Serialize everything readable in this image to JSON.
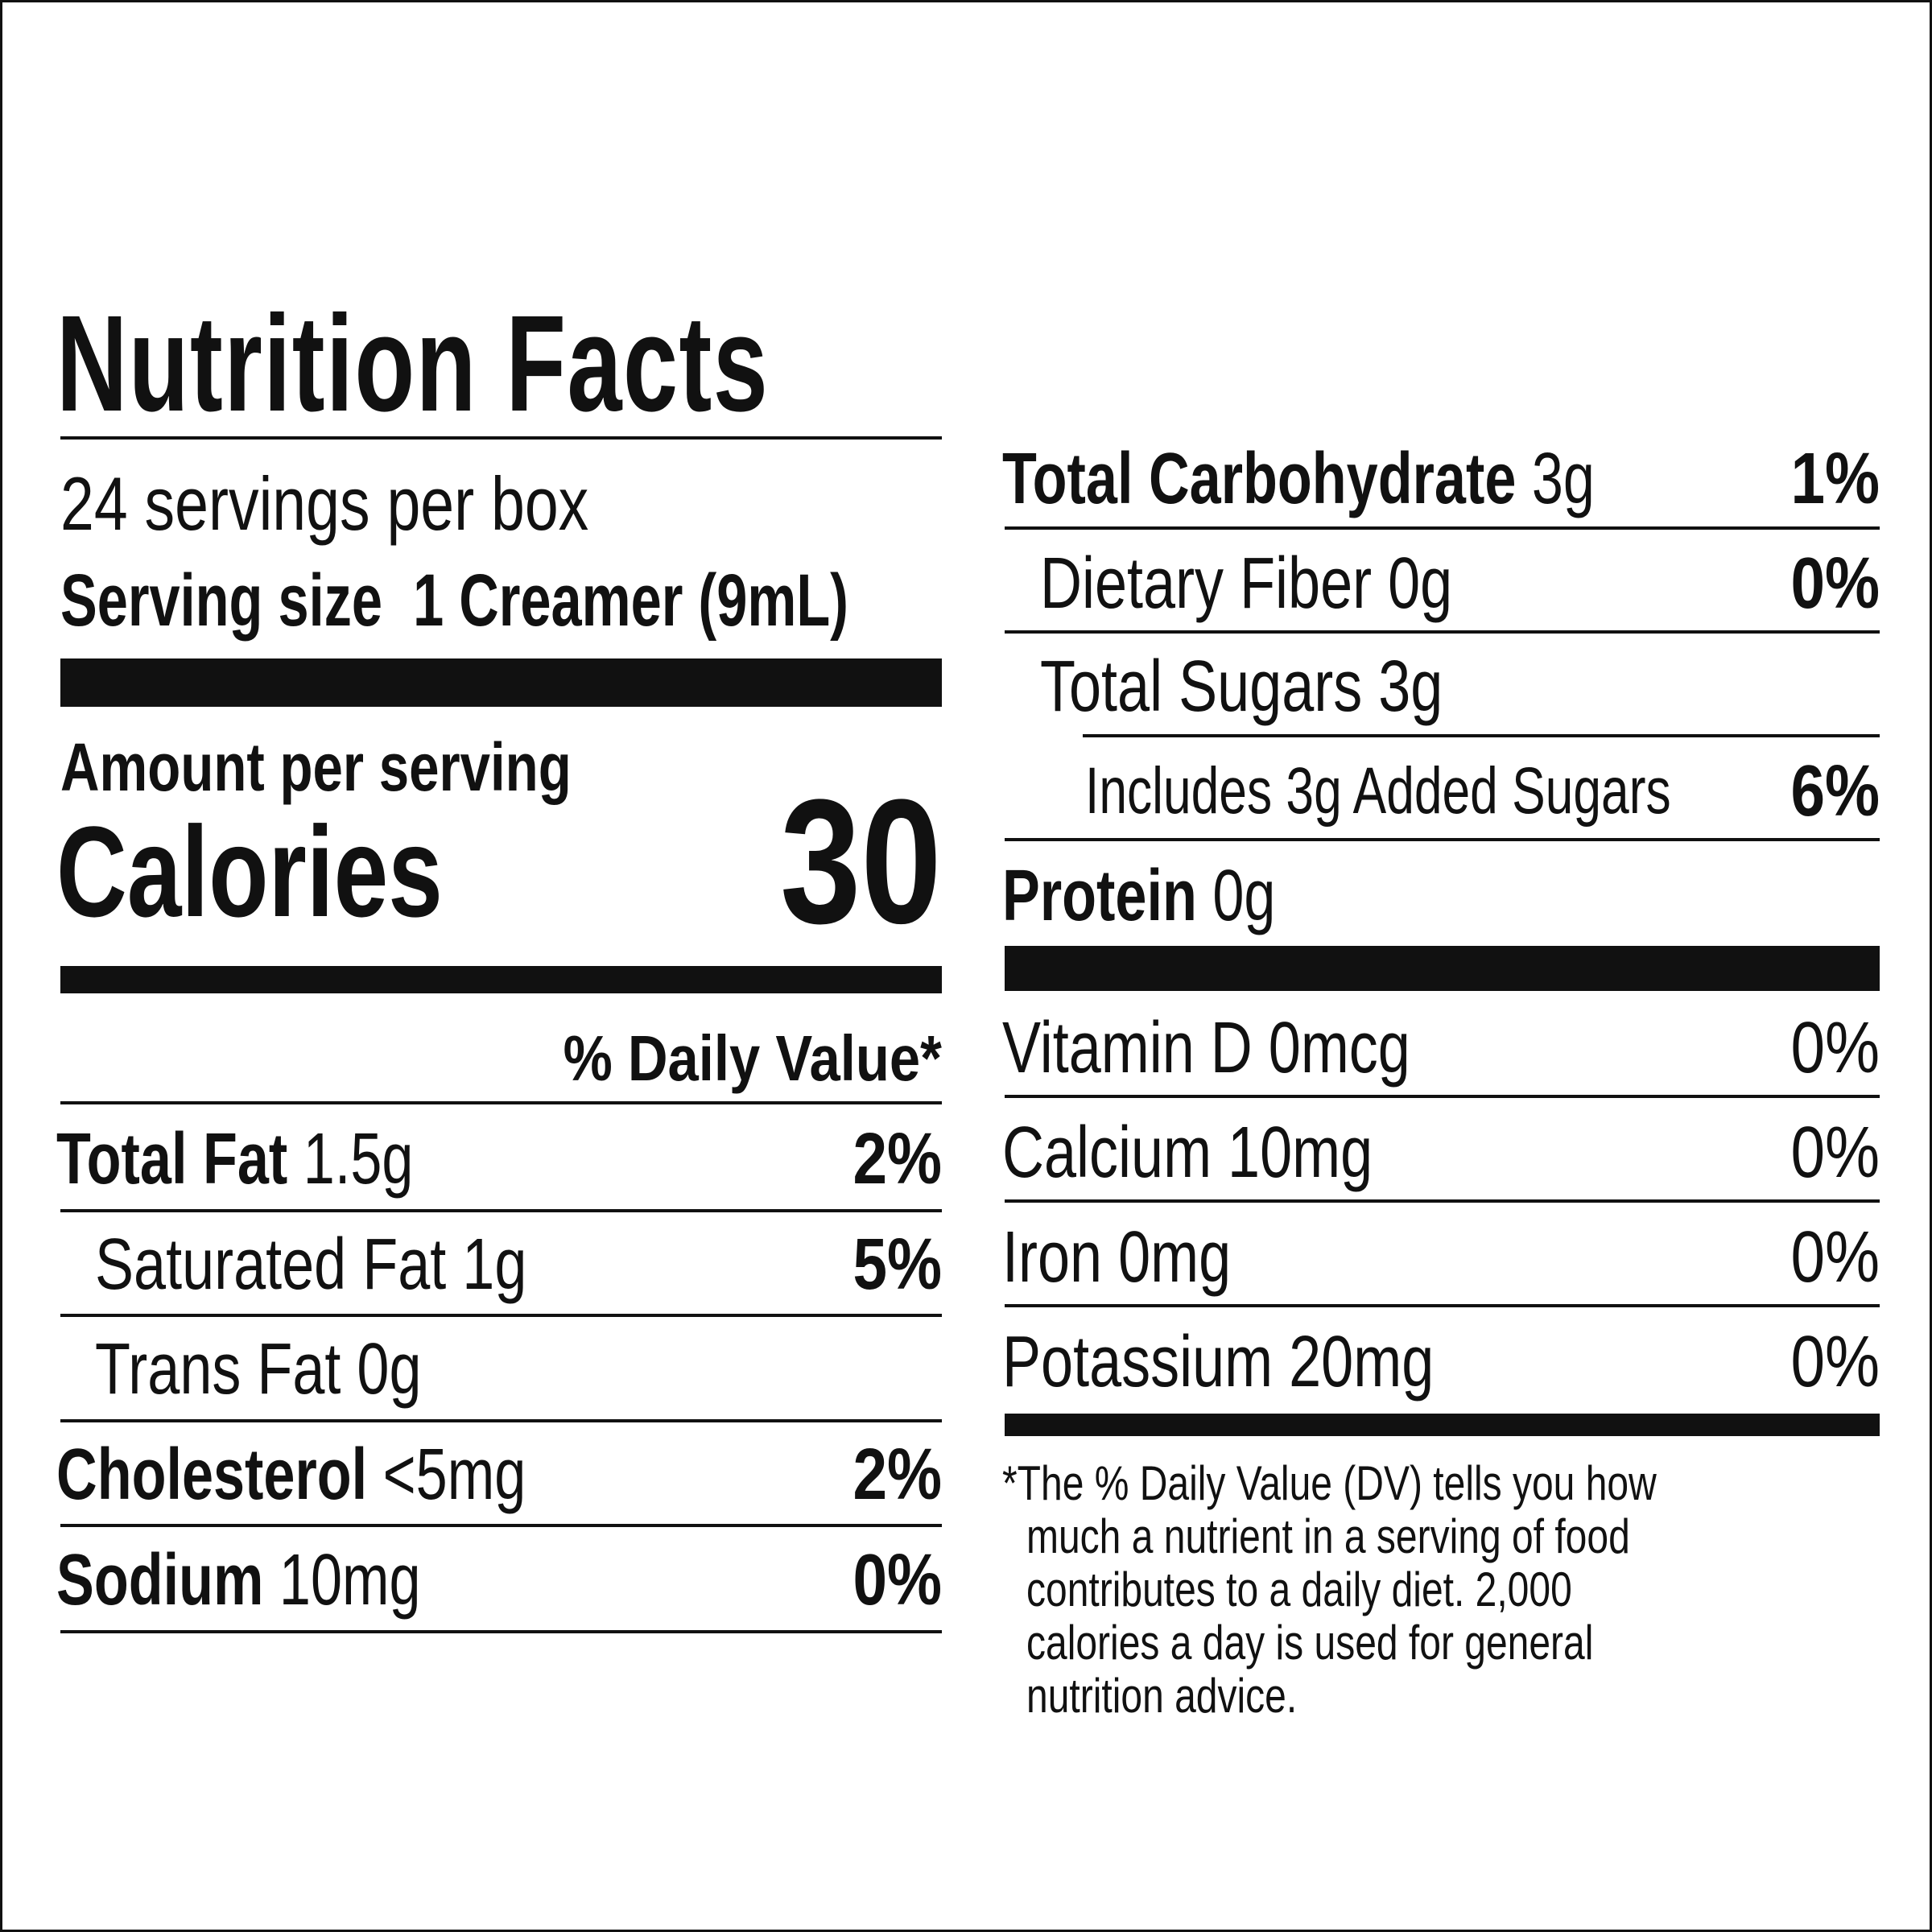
{
  "label": {
    "title": "Nutrition Facts",
    "servings_per_container": "24 servings per box",
    "serving_size_label": "Serving size",
    "serving_size_value": "1 Creamer (9mL)",
    "amount_per_serving": "Amount per serving",
    "calories_label": "Calories",
    "calories_value": "30",
    "daily_value_header": "% Daily Value*"
  },
  "left_nutrients": [
    {
      "name": "Total Fat",
      "amount": "1.5g",
      "dv": "2%",
      "bold": true
    },
    {
      "name": "Saturated Fat",
      "amount": "1g",
      "dv": "5%",
      "bold": false
    },
    {
      "name": "Trans Fat",
      "amount": "0g",
      "dv": "",
      "bold": false
    },
    {
      "name": "Cholesterol",
      "amount": "<5mg",
      "dv": "2%",
      "bold": true
    },
    {
      "name": "Sodium",
      "amount": "10mg",
      "dv": "0%",
      "bold": true
    }
  ],
  "right_nutrients": [
    {
      "name": "Total Carbohydrate",
      "amount": "3g",
      "dv": "1%",
      "bold": true
    },
    {
      "name": "Dietary Fiber",
      "amount": "0g",
      "dv": "0%",
      "bold": false
    },
    {
      "name": "Total Sugars",
      "amount": "3g",
      "dv": "",
      "bold": false
    },
    {
      "name": "Includes 3g Added Sugars",
      "amount": "",
      "dv": "6%",
      "bold": false
    },
    {
      "name": "Protein",
      "amount": "0g",
      "dv": "",
      "bold": true
    }
  ],
  "vitamins": [
    {
      "text": "Vitamin D 0mcg",
      "dv": "0%"
    },
    {
      "text": "Calcium 10mg",
      "dv": "0%"
    },
    {
      "text": "Iron 0mg",
      "dv": "0%"
    },
    {
      "text": "Potassium 20mg",
      "dv": "0%"
    }
  ],
  "footnote_lines": [
    "*The % Daily Value (DV) tells you how",
    "much a nutrient in a serving of food",
    "contributes to a daily diet. 2,000",
    "calories a day is used for general",
    "nutrition advice."
  ]
}
